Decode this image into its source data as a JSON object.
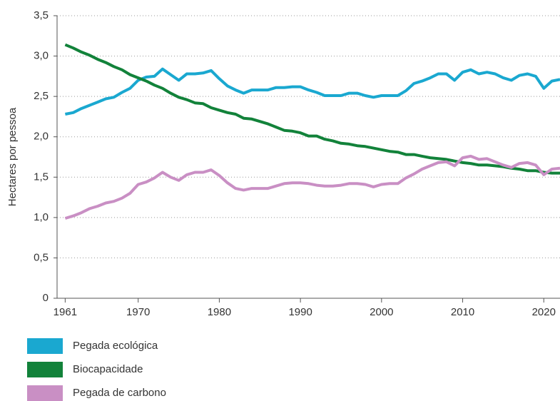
{
  "chart_data": {
    "type": "line",
    "y_label": "Hectares por pessoa",
    "x": [
      1961,
      1962,
      1963,
      1964,
      1965,
      1966,
      1967,
      1968,
      1969,
      1970,
      1971,
      1972,
      1973,
      1974,
      1975,
      1976,
      1977,
      1978,
      1979,
      1980,
      1981,
      1982,
      1983,
      1984,
      1985,
      1986,
      1987,
      1988,
      1989,
      1990,
      1991,
      1992,
      1993,
      1994,
      1995,
      1996,
      1997,
      1998,
      1999,
      2000,
      2001,
      2002,
      2003,
      2004,
      2005,
      2006,
      2007,
      2008,
      2009,
      2010,
      2011,
      2012,
      2013,
      2014,
      2015,
      2016,
      2017,
      2018,
      2019,
      2020,
      2021,
      2022
    ],
    "series": [
      {
        "name": "Pegada ecológica",
        "color": "#1aa8d0",
        "values": [
          2.28,
          2.3,
          2.35,
          2.39,
          2.43,
          2.47,
          2.49,
          2.55,
          2.6,
          2.7,
          2.74,
          2.75,
          2.84,
          2.77,
          2.7,
          2.78,
          2.78,
          2.79,
          2.82,
          2.72,
          2.63,
          2.58,
          2.54,
          2.58,
          2.58,
          2.58,
          2.61,
          2.61,
          2.62,
          2.62,
          2.58,
          2.55,
          2.51,
          2.51,
          2.51,
          2.54,
          2.54,
          2.51,
          2.49,
          2.51,
          2.51,
          2.51,
          2.57,
          2.66,
          2.69,
          2.73,
          2.78,
          2.78,
          2.7,
          2.8,
          2.83,
          2.78,
          2.8,
          2.78,
          2.73,
          2.7,
          2.76,
          2.78,
          2.75,
          2.6,
          2.69,
          2.71
        ]
      },
      {
        "name": "Biocapacidade",
        "color": "#12823a",
        "values": [
          3.14,
          3.1,
          3.05,
          3.01,
          2.96,
          2.92,
          2.87,
          2.83,
          2.77,
          2.73,
          2.69,
          2.64,
          2.6,
          2.54,
          2.49,
          2.46,
          2.42,
          2.41,
          2.36,
          2.33,
          2.3,
          2.28,
          2.23,
          2.22,
          2.19,
          2.16,
          2.12,
          2.08,
          2.07,
          2.05,
          2.01,
          2.01,
          1.97,
          1.95,
          1.92,
          1.91,
          1.89,
          1.88,
          1.86,
          1.84,
          1.82,
          1.81,
          1.78,
          1.78,
          1.76,
          1.74,
          1.73,
          1.72,
          1.7,
          1.68,
          1.67,
          1.65,
          1.65,
          1.64,
          1.63,
          1.61,
          1.6,
          1.58,
          1.58,
          1.56,
          1.55,
          1.55
        ]
      },
      {
        "name": "Pegada de carbono",
        "color": "#c98fc4",
        "values": [
          0.99,
          1.02,
          1.06,
          1.11,
          1.14,
          1.18,
          1.2,
          1.24,
          1.3,
          1.41,
          1.44,
          1.49,
          1.56,
          1.5,
          1.46,
          1.53,
          1.56,
          1.56,
          1.59,
          1.52,
          1.43,
          1.36,
          1.34,
          1.36,
          1.36,
          1.36,
          1.39,
          1.42,
          1.43,
          1.43,
          1.42,
          1.4,
          1.39,
          1.39,
          1.4,
          1.42,
          1.42,
          1.41,
          1.38,
          1.41,
          1.42,
          1.42,
          1.49,
          1.54,
          1.6,
          1.64,
          1.68,
          1.69,
          1.64,
          1.74,
          1.76,
          1.72,
          1.73,
          1.69,
          1.65,
          1.62,
          1.67,
          1.68,
          1.65,
          1.53,
          1.6,
          1.61
        ]
      }
    ],
    "xlim": [
      1960,
      2022
    ],
    "xticks": [
      1961,
      1970,
      1980,
      1990,
      2000,
      2010,
      2020
    ],
    "ylim": [
      0,
      3.5
    ],
    "yticks": [
      0,
      {
        "value": 0.5,
        "label": "0,5"
      },
      {
        "value": 1,
        "label": "1,0"
      },
      {
        "value": 1.5,
        "label": "1,5"
      },
      {
        "value": 2,
        "label": "2,0"
      },
      {
        "value": 2.5,
        "label": "2,5"
      },
      {
        "value": 3,
        "label": "3,0"
      },
      {
        "value": 3.5,
        "label": "3,5"
      }
    ],
    "grid": true
  }
}
